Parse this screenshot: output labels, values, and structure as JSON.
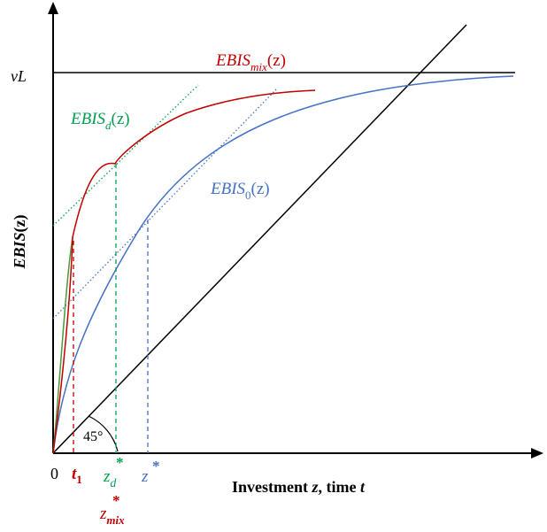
{
  "axes": {
    "y_label": "EBIS",
    "y_label_arg": "(z)",
    "x_label_prefix": "Investment ",
    "x_label_z": "z",
    "x_label_mid": ", time ",
    "x_label_t": "t",
    "origin": "0",
    "level_label": "νL"
  },
  "curves": {
    "mix": {
      "base": "EBIS",
      "sub": "mix",
      "arg": "(z)",
      "color": "#c00000"
    },
    "d": {
      "base": "EBIS",
      "sub": "d",
      "arg": "(z)",
      "color": "#00a050"
    },
    "zero": {
      "base": "EBIS",
      "sub": "0",
      "arg": "(z)",
      "color": "#4472c4"
    }
  },
  "angle_label": "45°",
  "ticks": {
    "t1": {
      "base": "t",
      "sub": "1",
      "color": "#c00000"
    },
    "zd": {
      "base": "z",
      "sub": "d",
      "sup": "*",
      "color": "#00a050"
    },
    "zstar": {
      "base": "z",
      "sup": "*",
      "color": "#4472c4"
    },
    "zmix": {
      "base": "z",
      "sub": "mix",
      "sup": "*",
      "color": "#c00000"
    }
  }
}
